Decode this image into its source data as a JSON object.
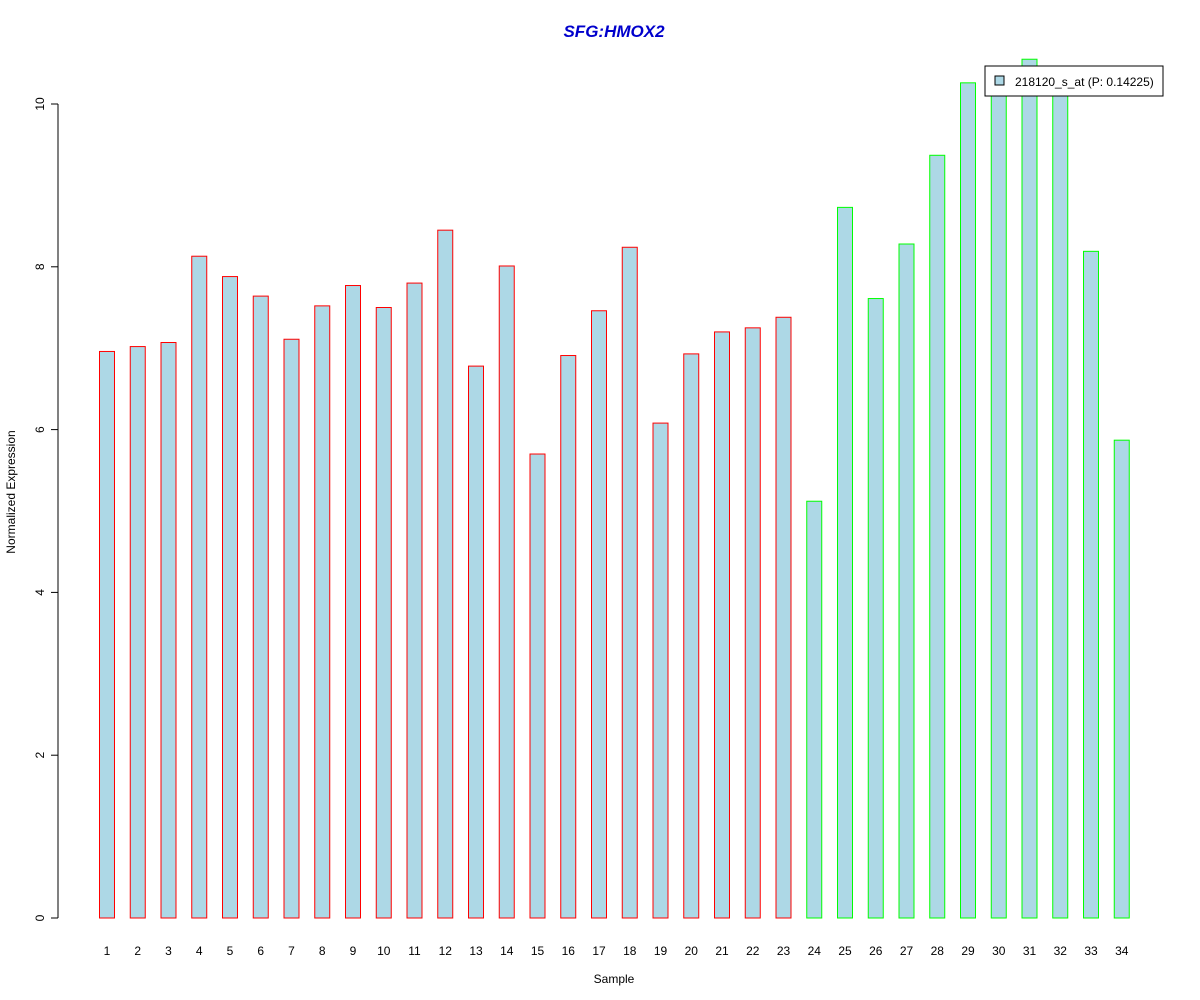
{
  "chart_data": {
    "type": "bar",
    "title": "SFG:HMOX2",
    "xlabel": "Sample",
    "ylabel": "Normalized Expression",
    "ylim": [
      0,
      10.5
    ],
    "yticks": [
      0,
      2,
      4,
      6,
      8,
      10
    ],
    "grid": false,
    "legend_position": "top-right",
    "legend": [
      {
        "label": "218120_s_at (P: 0.14225)",
        "fill": "#add8e6"
      }
    ],
    "categories": [
      "1",
      "2",
      "3",
      "4",
      "5",
      "6",
      "7",
      "8",
      "9",
      "10",
      "11",
      "12",
      "13",
      "14",
      "15",
      "16",
      "17",
      "18",
      "19",
      "20",
      "21",
      "22",
      "23",
      "24",
      "25",
      "26",
      "27",
      "28",
      "29",
      "30",
      "31",
      "32",
      "33",
      "34"
    ],
    "values": [
      6.96,
      7.02,
      7.07,
      8.13,
      7.88,
      7.64,
      7.11,
      7.52,
      7.77,
      7.5,
      7.8,
      8.45,
      6.78,
      8.01,
      5.7,
      6.91,
      7.46,
      8.24,
      6.08,
      6.93,
      7.2,
      7.25,
      7.38,
      5.12,
      8.73,
      7.61,
      8.28,
      9.37,
      10.26,
      10.12,
      10.55,
      10.2,
      8.19,
      5.87
    ],
    "bar_fill": "#add8e6",
    "group_colors": {
      "group1": "#ff0000",
      "group2": "#00ff00"
    },
    "group_split_after": 23
  }
}
